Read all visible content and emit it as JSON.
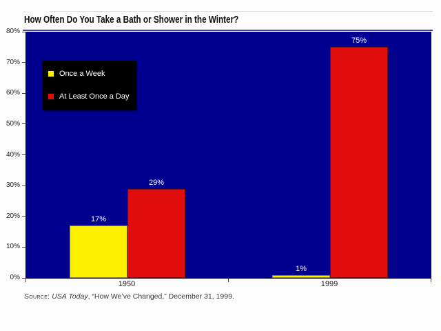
{
  "title": "How Often Do You Take a Bath or Shower in the Winter?",
  "source": {
    "prefix": "Source:",
    "publication": " USA Today",
    "rest": ", “How We’ve Changed,” December 31, 1999."
  },
  "colors": {
    "plot_background": "#00008f",
    "series_once_a_week": "#fff000",
    "series_at_least_once_a_day": "#e00d0d",
    "legend_background": "#000000",
    "title_underline": "#42429a",
    "value_label": "#ffffff"
  },
  "chart_data": {
    "type": "bar",
    "title": "How Often Do You Take a Bath or Shower in the Winter?",
    "categories": [
      "1950",
      "1999"
    ],
    "series": [
      {
        "name": "Once a Week",
        "color": "#fff000",
        "values": [
          17,
          1
        ],
        "labels": [
          "17%",
          "1%"
        ]
      },
      {
        "name": "At Least Once a Day",
        "color": "#e00d0d",
        "values": [
          29,
          75
        ],
        "labels": [
          "29%",
          "75%"
        ]
      }
    ],
    "xlabel": "",
    "ylabel": "",
    "ylim": [
      0,
      80
    ],
    "ytick_step": 10,
    "ytick_labels": [
      "0%",
      "10%",
      "20%",
      "30%",
      "40%",
      "50%",
      "60%",
      "70%",
      "80%"
    ],
    "grid": false,
    "legend_position": "upper-left-inside",
    "plot_bg": "#00008f"
  }
}
